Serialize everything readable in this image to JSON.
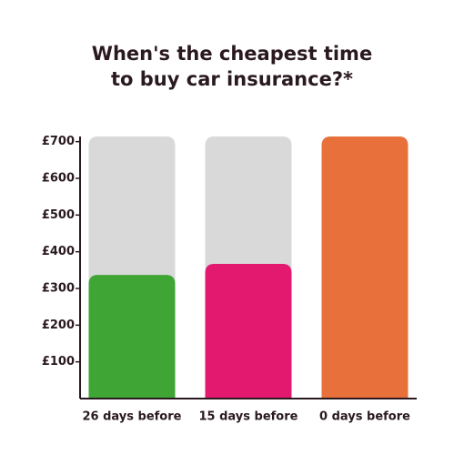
{
  "chart_data": {
    "type": "bar",
    "title": [
      "When's the cheapest time",
      "to buy car insurance?*"
    ],
    "categories": [
      "26 days before",
      "15 days before",
      "0 days before"
    ],
    "values": [
      337,
      367,
      714
    ],
    "colors": [
      "#3fa535",
      "#e2196e",
      "#e8703a"
    ],
    "track_color": "#d9d9d9",
    "ylim": [
      0,
      714
    ],
    "yticks": [
      {
        "value": 100,
        "label": "£100"
      },
      {
        "value": 200,
        "label": "£200"
      },
      {
        "value": 300,
        "label": "£300"
      },
      {
        "value": 400,
        "label": "£400"
      },
      {
        "value": 500,
        "label": "£500"
      },
      {
        "value": 600,
        "label": "£600"
      },
      {
        "value": 700,
        "label": "£700"
      }
    ]
  }
}
